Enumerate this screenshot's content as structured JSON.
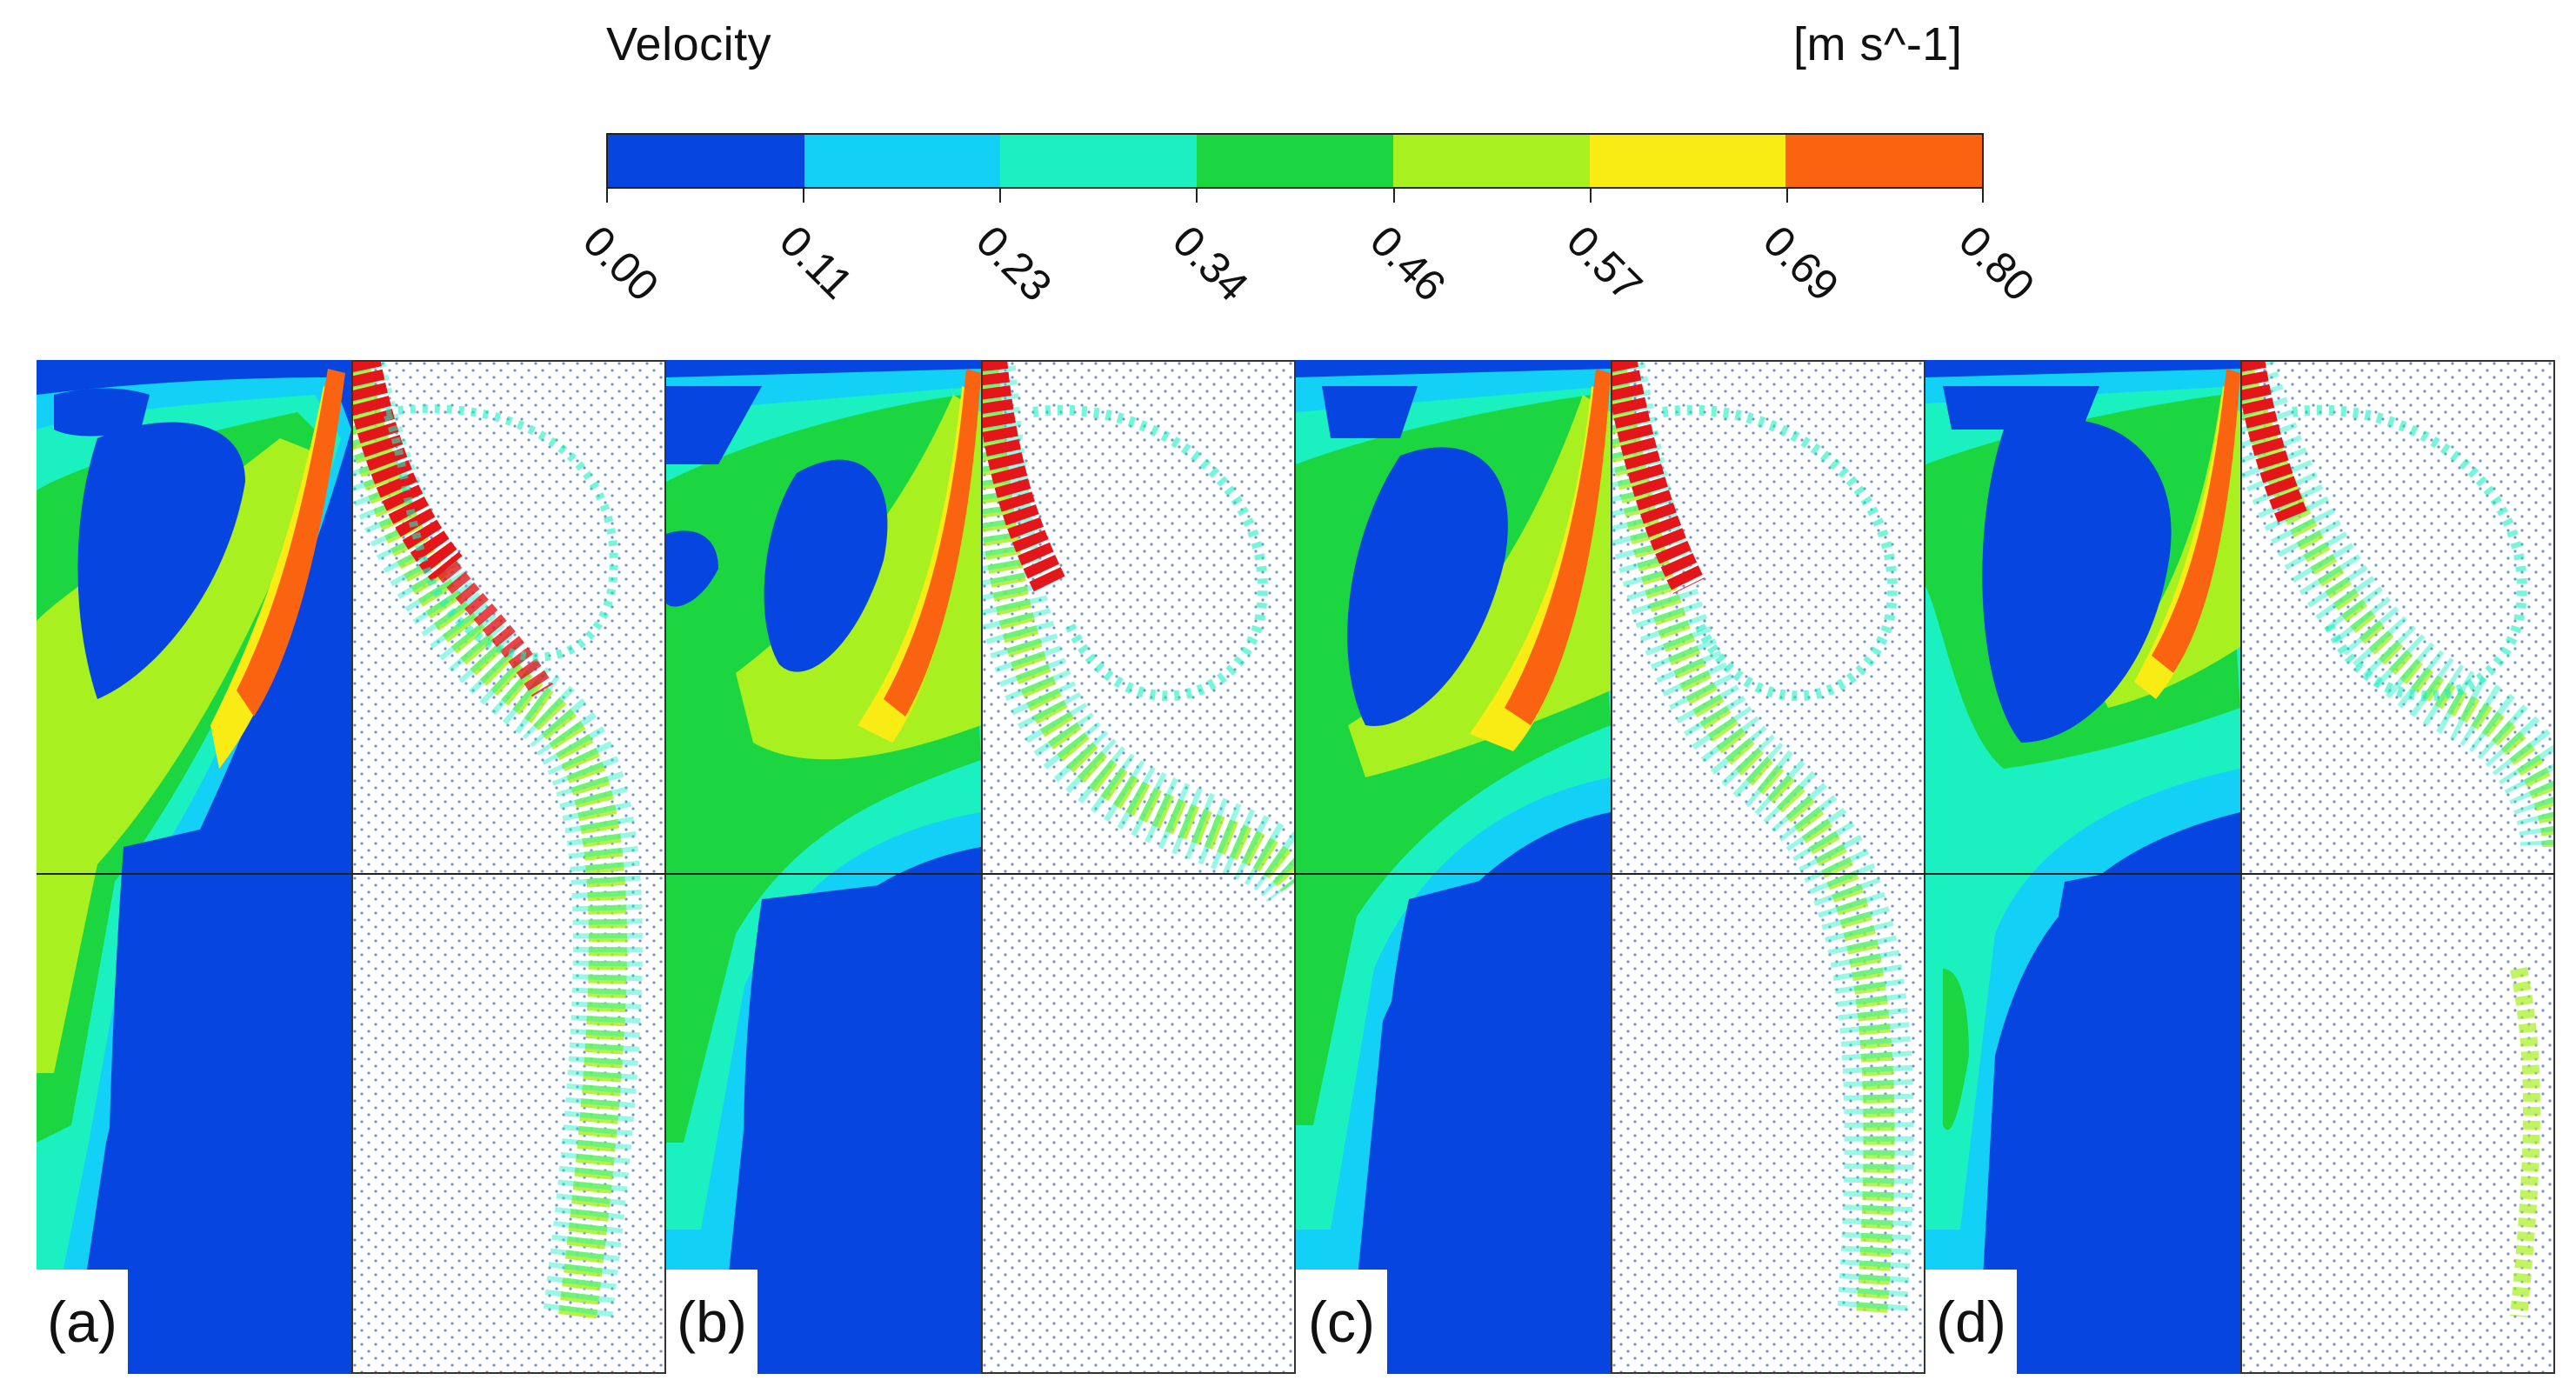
{
  "legend": {
    "title": "Velocity",
    "unit": "[m s^-1]",
    "ticks": [
      "0.00",
      "0.11",
      "0.23",
      "0.34",
      "0.46",
      "0.57",
      "0.69",
      "0.80"
    ],
    "colors": [
      "#0645e0",
      "#12d0f6",
      "#1bf0c0",
      "#1bd640",
      "#a8f020",
      "#f8ec14",
      "#fa6410"
    ]
  },
  "panels": [
    {
      "label": "(a)"
    },
    {
      "label": "(b)"
    },
    {
      "label": "(c)"
    },
    {
      "label": "(d)"
    }
  ]
}
